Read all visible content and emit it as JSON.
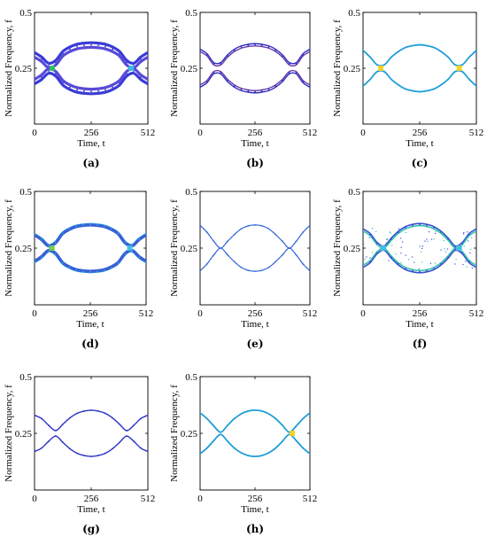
{
  "chart_data": [
    {
      "caption": "(a)",
      "type": "scatter",
      "xlabel": "Time, t",
      "ylabel": "Normalized Frequency, f",
      "xticks": [
        0,
        256,
        512
      ],
      "yticks": [
        0.25,
        0.5
      ],
      "ytick_labels": [
        "0.25",
        "0.5"
      ],
      "xlim": [
        0,
        512
      ],
      "ylim": [
        0,
        0.5
      ],
      "style": "thick-double",
      "series": [
        {
          "x": [
            0,
            32,
            64,
            96,
            128,
            160,
            192,
            224,
            256,
            288,
            320,
            352,
            384,
            416,
            448,
            480,
            512
          ],
          "y": [
            0.31,
            0.29,
            0.262,
            0.275,
            0.315,
            0.335,
            0.347,
            0.352,
            0.354,
            0.352,
            0.347,
            0.335,
            0.315,
            0.275,
            0.262,
            0.29,
            0.31
          ]
        },
        {
          "x": [
            0,
            32,
            64,
            96,
            128,
            160,
            192,
            224,
            256,
            288,
            320,
            352,
            384,
            416,
            448,
            480,
            512
          ],
          "y": [
            0.19,
            0.21,
            0.238,
            0.225,
            0.185,
            0.165,
            0.153,
            0.148,
            0.146,
            0.148,
            0.153,
            0.165,
            0.185,
            0.225,
            0.238,
            0.21,
            0.19
          ]
        }
      ],
      "hotspots": [
        {
          "x": 80,
          "y": 0.25,
          "color": "#35c25a"
        },
        {
          "x": 437,
          "y": 0.25,
          "color": "#3fbfe6"
        }
      ]
    },
    {
      "caption": "(b)",
      "type": "scatter",
      "xlabel": "Time, t",
      "ylabel": "Normalized Frequency, f",
      "xticks": [
        0,
        256,
        512
      ],
      "yticks": [
        0.25,
        0.5
      ],
      "ytick_labels": [
        "0.25",
        "0.5"
      ],
      "xlim": [
        0,
        512
      ],
      "ylim": [
        0,
        0.5
      ],
      "style": "double",
      "series": [
        {
          "x": [
            0,
            32,
            64,
            96,
            128,
            160,
            192,
            224,
            256,
            288,
            320,
            352,
            384,
            416,
            448,
            480,
            512
          ],
          "y": [
            0.33,
            0.31,
            0.27,
            0.27,
            0.305,
            0.33,
            0.345,
            0.352,
            0.355,
            0.352,
            0.345,
            0.33,
            0.305,
            0.27,
            0.27,
            0.31,
            0.33
          ]
        },
        {
          "x": [
            0,
            32,
            64,
            96,
            128,
            160,
            192,
            224,
            256,
            288,
            320,
            352,
            384,
            416,
            448,
            480,
            512
          ],
          "y": [
            0.17,
            0.19,
            0.23,
            0.23,
            0.195,
            0.17,
            0.155,
            0.148,
            0.145,
            0.148,
            0.155,
            0.17,
            0.195,
            0.23,
            0.23,
            0.19,
            0.17
          ]
        }
      ]
    },
    {
      "caption": "(c)",
      "type": "scatter",
      "xlabel": "Time, t",
      "ylabel": "Normalized Frequency, f",
      "xticks": [
        0,
        256,
        512
      ],
      "yticks": [
        0.25,
        0.5
      ],
      "ytick_labels": [
        "0.25",
        "0.5"
      ],
      "xlim": [
        0,
        512
      ],
      "ylim": [
        0,
        0.5
      ],
      "style": "single-light",
      "series": [
        {
          "x": [
            0,
            32,
            64,
            96,
            128,
            160,
            192,
            224,
            256,
            288,
            320,
            352,
            384,
            416,
            448,
            480,
            512
          ],
          "y": [
            0.33,
            0.3,
            0.265,
            0.265,
            0.3,
            0.325,
            0.343,
            0.351,
            0.355,
            0.351,
            0.343,
            0.325,
            0.3,
            0.265,
            0.265,
            0.3,
            0.33
          ]
        },
        {
          "x": [
            0,
            32,
            64,
            96,
            128,
            160,
            192,
            224,
            256,
            288,
            320,
            352,
            384,
            416,
            448,
            480,
            512
          ],
          "y": [
            0.17,
            0.2,
            0.235,
            0.235,
            0.2,
            0.175,
            0.157,
            0.149,
            0.145,
            0.149,
            0.157,
            0.175,
            0.2,
            0.235,
            0.235,
            0.2,
            0.17
          ]
        }
      ],
      "hotspots": [
        {
          "x": 80,
          "y": 0.25,
          "color": "#f2d21b"
        },
        {
          "x": 435,
          "y": 0.25,
          "color": "#f2d21b"
        }
      ]
    },
    {
      "caption": "(d)",
      "type": "scatter",
      "xlabel": "Time, t",
      "ylabel": "Normalized Frequency, f",
      "xticks": [
        0,
        256,
        512
      ],
      "yticks": [
        0.25,
        0.5
      ],
      "ytick_labels": [
        "0.25",
        "0.5"
      ],
      "xlim": [
        0,
        512
      ],
      "ylim": [
        0,
        0.5
      ],
      "style": "thick-light",
      "series": [
        {
          "x": [
            0,
            32,
            64,
            96,
            128,
            160,
            192,
            224,
            256,
            288,
            320,
            352,
            384,
            416,
            448,
            480,
            512
          ],
          "y": [
            0.31,
            0.29,
            0.262,
            0.275,
            0.315,
            0.335,
            0.347,
            0.352,
            0.354,
            0.352,
            0.347,
            0.335,
            0.315,
            0.275,
            0.262,
            0.29,
            0.31
          ]
        },
        {
          "x": [
            0,
            32,
            64,
            96,
            128,
            160,
            192,
            224,
            256,
            288,
            320,
            352,
            384,
            416,
            448,
            480,
            512
          ],
          "y": [
            0.19,
            0.21,
            0.238,
            0.225,
            0.185,
            0.165,
            0.153,
            0.148,
            0.146,
            0.148,
            0.153,
            0.165,
            0.185,
            0.225,
            0.238,
            0.21,
            0.19
          ]
        }
      ],
      "hotspots": [
        {
          "x": 80,
          "y": 0.25,
          "color": "#6fcf4a"
        },
        {
          "x": 437,
          "y": 0.25,
          "color": "#3fbfe6"
        }
      ]
    },
    {
      "caption": "(e)",
      "type": "scatter",
      "xlabel": "Time, t",
      "ylabel": "Normalized Frequency, f",
      "xticks": [
        0,
        256,
        512
      ],
      "yticks": [
        0.25,
        0.5
      ],
      "ytick_labels": [
        "0.25",
        "0.5"
      ],
      "xlim": [
        0,
        512
      ],
      "ylim": [
        0,
        0.5
      ],
      "style": "thin",
      "series": [
        {
          "x": [
            0,
            32,
            64,
            96,
            128,
            160,
            192,
            224,
            256,
            288,
            320,
            352,
            384,
            416,
            448,
            480,
            512
          ],
          "y": [
            0.35,
            0.32,
            0.28,
            0.25,
            0.28,
            0.31,
            0.335,
            0.348,
            0.352,
            0.348,
            0.335,
            0.31,
            0.28,
            0.25,
            0.28,
            0.32,
            0.35
          ]
        },
        {
          "x": [
            0,
            32,
            64,
            96,
            128,
            160,
            192,
            224,
            256,
            288,
            320,
            352,
            384,
            416,
            448,
            480,
            512
          ],
          "y": [
            0.15,
            0.18,
            0.22,
            0.25,
            0.22,
            0.19,
            0.165,
            0.152,
            0.148,
            0.152,
            0.165,
            0.19,
            0.22,
            0.25,
            0.22,
            0.18,
            0.15
          ]
        }
      ]
    },
    {
      "caption": "(f)",
      "type": "scatter",
      "xlabel": "Time, t",
      "ylabel": "Normalized Frequency, f",
      "xticks": [
        0,
        256,
        512
      ],
      "yticks": [
        0.25,
        0.5
      ],
      "ytick_labels": [
        "0.25",
        "0.5"
      ],
      "xlim": [
        0,
        512
      ],
      "ylim": [
        0,
        0.5
      ],
      "style": "noisy",
      "series": [
        {
          "x": [
            0,
            32,
            64,
            96,
            128,
            160,
            192,
            224,
            256,
            288,
            320,
            352,
            384,
            416,
            448,
            480,
            512
          ],
          "y": [
            0.33,
            0.31,
            0.27,
            0.255,
            0.29,
            0.32,
            0.34,
            0.35,
            0.354,
            0.35,
            0.34,
            0.32,
            0.29,
            0.255,
            0.27,
            0.31,
            0.33
          ]
        },
        {
          "x": [
            0,
            32,
            64,
            96,
            128,
            160,
            192,
            224,
            256,
            288,
            320,
            352,
            384,
            416,
            448,
            480,
            512
          ],
          "y": [
            0.17,
            0.19,
            0.23,
            0.245,
            0.21,
            0.18,
            0.16,
            0.15,
            0.146,
            0.15,
            0.16,
            0.18,
            0.21,
            0.245,
            0.23,
            0.19,
            0.17
          ]
        }
      ],
      "hotspots": [
        {
          "x": 92,
          "y": 0.25,
          "color": "#3fbfe6"
        },
        {
          "x": 435,
          "y": 0.25,
          "color": "#3fbfe6"
        }
      ]
    },
    {
      "caption": "(g)",
      "type": "scatter",
      "xlabel": "Time, t",
      "ylabel": "Normalized Frequency, f",
      "xticks": [
        0,
        256,
        512
      ],
      "yticks": [
        0.25,
        0.5
      ],
      "ytick_labels": [
        "0.25",
        "0.5"
      ],
      "xlim": [
        0,
        512
      ],
      "ylim": [
        0,
        0.5
      ],
      "style": "dark-thin",
      "series": [
        {
          "x": [
            0,
            32,
            64,
            96,
            128,
            160,
            192,
            224,
            256,
            288,
            320,
            352,
            384,
            416,
            448,
            480,
            512
          ],
          "y": [
            0.33,
            0.315,
            0.285,
            0.262,
            0.29,
            0.318,
            0.338,
            0.348,
            0.352,
            0.348,
            0.338,
            0.318,
            0.29,
            0.262,
            0.285,
            0.315,
            0.33
          ]
        },
        {
          "x": [
            0,
            32,
            64,
            96,
            128,
            160,
            192,
            224,
            256,
            288,
            320,
            352,
            384,
            416,
            448,
            480,
            512
          ],
          "y": [
            0.17,
            0.185,
            0.215,
            0.238,
            0.21,
            0.182,
            0.162,
            0.152,
            0.148,
            0.152,
            0.162,
            0.182,
            0.21,
            0.238,
            0.215,
            0.185,
            0.17
          ]
        }
      ]
    },
    {
      "caption": "(h)",
      "type": "scatter",
      "xlabel": "Time, t",
      "ylabel": "Normalized Frequency, f",
      "xticks": [
        0,
        256,
        512
      ],
      "yticks": [
        0.25,
        0.5
      ],
      "ytick_labels": [
        "0.25",
        "0.5"
      ],
      "xlim": [
        0,
        512
      ],
      "ylim": [
        0,
        0.5
      ],
      "style": "single-light",
      "series": [
        {
          "x": [
            0,
            32,
            64,
            96,
            128,
            160,
            192,
            224,
            256,
            288,
            320,
            352,
            384,
            416,
            448,
            480,
            512
          ],
          "y": [
            0.34,
            0.315,
            0.282,
            0.255,
            0.285,
            0.315,
            0.336,
            0.348,
            0.352,
            0.348,
            0.336,
            0.315,
            0.285,
            0.255,
            0.282,
            0.315,
            0.34
          ]
        },
        {
          "x": [
            0,
            32,
            64,
            96,
            128,
            160,
            192,
            224,
            256,
            288,
            320,
            352,
            384,
            416,
            448,
            480,
            512
          ],
          "y": [
            0.16,
            0.185,
            0.218,
            0.245,
            0.215,
            0.185,
            0.164,
            0.152,
            0.148,
            0.152,
            0.164,
            0.185,
            0.215,
            0.245,
            0.218,
            0.185,
            0.16
          ]
        }
      ],
      "hotspots": [
        {
          "x": 430,
          "y": 0.25,
          "color": "#f2d21b"
        }
      ]
    }
  ]
}
